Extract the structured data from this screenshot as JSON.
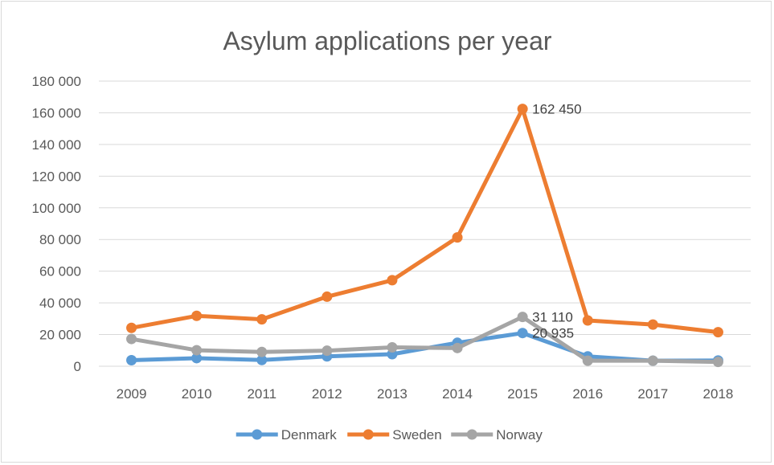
{
  "chart_data": {
    "type": "line",
    "title": "Asylum applications per year",
    "xlabel": "",
    "ylabel": "",
    "categories": [
      "2009",
      "2010",
      "2011",
      "2012",
      "2013",
      "2014",
      "2015",
      "2016",
      "2017",
      "2018"
    ],
    "ylim": [
      0,
      180000
    ],
    "y_ticks": [
      0,
      20000,
      40000,
      60000,
      80000,
      100000,
      120000,
      140000,
      160000,
      180000
    ],
    "y_tick_labels": [
      "0",
      "20 000",
      "40 000",
      "60 000",
      "80 000",
      "100 000",
      "120 000",
      "140 000",
      "160 000",
      "180 000"
    ],
    "grid": true,
    "legend_position": "bottom",
    "series": [
      {
        "name": "Denmark",
        "color": "#5b9bd5",
        "values": [
          3800,
          5100,
          3900,
          6200,
          7600,
          14800,
          20935,
          6200,
          3500,
          3600
        ]
      },
      {
        "name": "Sweden",
        "color": "#ed7d31",
        "values": [
          24200,
          31800,
          29600,
          43900,
          54300,
          81300,
          162450,
          28900,
          26300,
          21500
        ]
      },
      {
        "name": "Norway",
        "color": "#a5a5a5",
        "values": [
          17200,
          10100,
          9000,
          9800,
          11900,
          11500,
          31110,
          3500,
          3500,
          2700
        ]
      }
    ],
    "annotations": [
      {
        "series": "Sweden",
        "category": "2015",
        "text": "162 450"
      },
      {
        "series": "Norway",
        "category": "2015",
        "text": "31 110"
      },
      {
        "series": "Denmark",
        "category": "2015",
        "text": "20 935"
      }
    ]
  }
}
